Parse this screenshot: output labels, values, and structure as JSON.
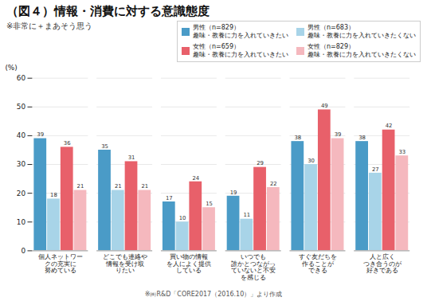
{
  "chart_data": {
    "type": "bar",
    "title": "（図４）情報・消費に対する意識態度",
    "subtitle": "※非常に＋まあそう思う",
    "ylabel": "(%)",
    "footnote": "※㈱R&D「CORE2017（2016.10）」より作成",
    "categories": [
      "個人ネットワー\nクの充実に\n努めている",
      "どこでも連絡や\n情報を受け取\nりたい",
      "買い物の情報\nを人によく提供\nしている",
      "いつでも\n誰かとつながっ\nていないと不安\nを感じる",
      "すぐ友だちを\n作ることが\nできる",
      "人と広く\nつき合うのが\n好きである"
    ],
    "series": [
      {
        "name": "男性（n=829）\n趣味・教養に力を入れていきたい",
        "color": "#4a9bc7",
        "values": [
          39,
          35,
          17,
          19,
          38,
          38
        ]
      },
      {
        "name": "男性（n=683）\n趣味・教養に力を入れていきたくない",
        "color": "#a8d4e8",
        "values": [
          18,
          21,
          10,
          11,
          30,
          27
        ]
      },
      {
        "name": "女性（n=659）\n趣味・教養に力を入れていきたい",
        "color": "#e8606a",
        "values": [
          36,
          31,
          24,
          29,
          49,
          42
        ]
      },
      {
        "name": "女性（n=829）\n趣味・教養に力を入れていきたくない",
        "color": "#f5b8be",
        "values": [
          21,
          21,
          15,
          22,
          39,
          33
        ]
      }
    ],
    "ylim": [
      0,
      60
    ],
    "yticks": [
      0,
      10,
      20,
      30,
      40,
      50,
      60
    ],
    "grid": true,
    "data_labels": true,
    "legend": "upper right"
  }
}
